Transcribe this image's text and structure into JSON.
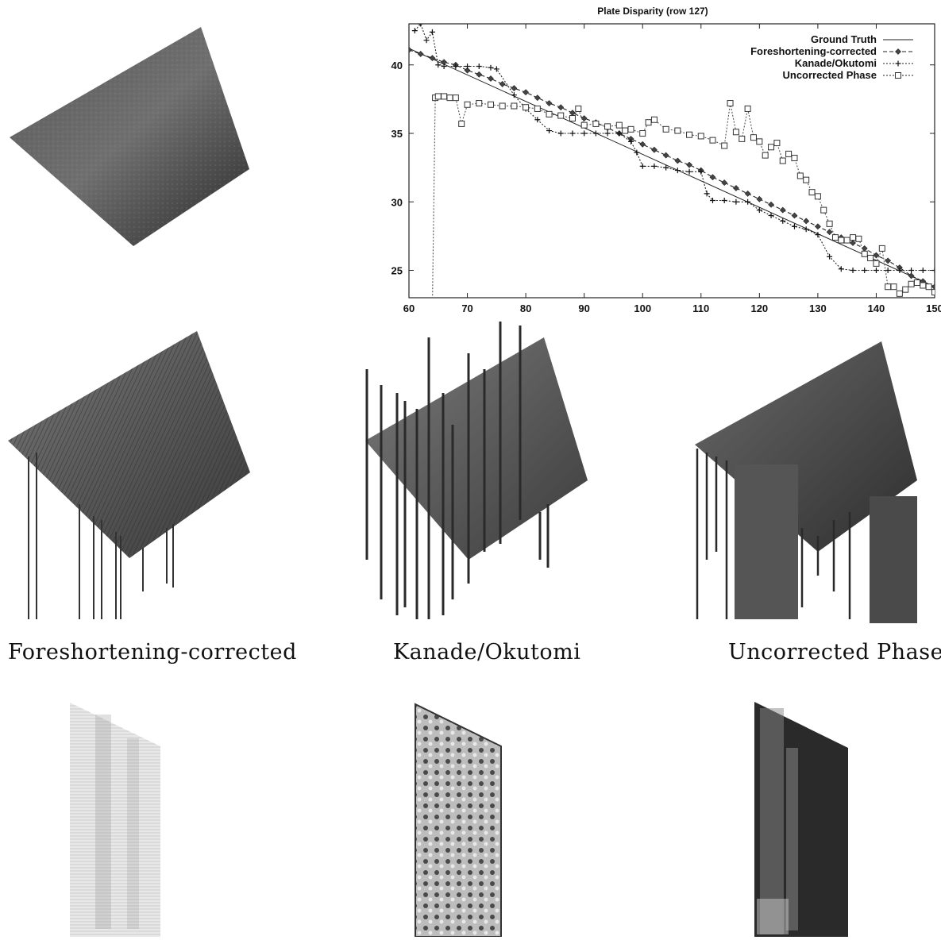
{
  "captions": {
    "left": "Foreshortening-corrected",
    "middle": "Kanade/Okutomi",
    "right": "Uncorrected Phase"
  },
  "chart_data": {
    "type": "line",
    "title": "Plate Disparity (row 127)",
    "xlabel": "",
    "ylabel": "",
    "xlim": [
      60,
      150
    ],
    "ylim": [
      23,
      43
    ],
    "xticks": [
      60,
      70,
      80,
      90,
      100,
      110,
      120,
      130,
      140,
      150
    ],
    "yticks": [
      25,
      30,
      35,
      40
    ],
    "grid": false,
    "legend": "top-right",
    "series": [
      {
        "name": "Ground Truth",
        "style": "solid",
        "marker": "none",
        "x": [
          60,
          150
        ],
        "y": [
          41.2,
          23.8
        ]
      },
      {
        "name": "Foreshortening-corrected",
        "style": "dashed",
        "marker": "diamond",
        "x": [
          60,
          62,
          64,
          66,
          68,
          70,
          72,
          74,
          76,
          78,
          80,
          82,
          84,
          86,
          88,
          90,
          92,
          94,
          96,
          98,
          100,
          102,
          104,
          106,
          108,
          110,
          112,
          114,
          116,
          118,
          120,
          122,
          124,
          126,
          128,
          130,
          132,
          134,
          136,
          138,
          140,
          142,
          144,
          146,
          148,
          150
        ],
        "y": [
          41.1,
          40.8,
          40.5,
          40.2,
          40.0,
          39.6,
          39.3,
          39.0,
          38.6,
          38.3,
          38.0,
          37.6,
          37.2,
          36.9,
          36.5,
          36.1,
          35.8,
          35.4,
          35.0,
          34.6,
          34.2,
          33.8,
          33.4,
          33.0,
          32.7,
          32.3,
          31.8,
          31.4,
          31.0,
          30.6,
          30.2,
          29.8,
          29.4,
          29.0,
          28.6,
          28.2,
          27.8,
          27.4,
          27.0,
          26.6,
          26.1,
          25.7,
          25.2,
          24.6,
          24.2,
          23.8
        ]
      },
      {
        "name": "Kanade/Okutomi",
        "style": "dotted",
        "marker": "plus",
        "x": [
          61,
          62,
          63,
          64,
          65,
          66,
          68,
          70,
          72,
          74,
          75,
          78,
          80,
          82,
          84,
          86,
          88,
          90,
          92,
          94,
          96,
          98,
          99,
          100,
          102,
          104,
          106,
          108,
          110,
          111,
          112,
          114,
          116,
          118,
          120,
          122,
          124,
          126,
          128,
          130,
          132,
          134,
          136,
          138,
          140,
          142,
          144,
          146,
          148,
          150
        ],
        "y": [
          42.5,
          43.0,
          41.8,
          42.4,
          40.0,
          39.9,
          39.9,
          39.9,
          39.9,
          39.8,
          39.7,
          37.8,
          36.8,
          36.0,
          35.2,
          35.0,
          35.0,
          35.0,
          35.0,
          35.0,
          35.0,
          34.4,
          33.6,
          32.6,
          32.6,
          32.5,
          32.3,
          32.2,
          32.2,
          30.6,
          30.1,
          30.1,
          30.0,
          30.0,
          29.4,
          29.0,
          28.6,
          28.2,
          28.0,
          27.6,
          26.0,
          25.1,
          25.0,
          25.0,
          25.0,
          25.0,
          25.0,
          25.0,
          25.0,
          25.0
        ]
      },
      {
        "name": "Uncorrected Phase",
        "style": "dotted",
        "marker": "square",
        "x": [
          64,
          64.5,
          65,
          66,
          67,
          68,
          69,
          70,
          72,
          74,
          76,
          78,
          80,
          82,
          84,
          86,
          88,
          89,
          90,
          92,
          94,
          96,
          97,
          98,
          100,
          101,
          102,
          104,
          106,
          108,
          110,
          112,
          114,
          115,
          116,
          117,
          118,
          119,
          120,
          121,
          122,
          123,
          124,
          125,
          126,
          127,
          128,
          129,
          130,
          131,
          132,
          133,
          134,
          135,
          136,
          137,
          138,
          139,
          140,
          141,
          142,
          143,
          144,
          145,
          146,
          147,
          148,
          149,
          150
        ],
        "y": [
          22.0,
          37.6,
          37.7,
          37.7,
          37.6,
          37.6,
          35.7,
          37.1,
          37.2,
          37.1,
          37.0,
          37.0,
          36.9,
          36.8,
          36.4,
          36.3,
          36.1,
          36.8,
          35.6,
          35.7,
          35.5,
          35.6,
          35.2,
          35.3,
          35.0,
          35.8,
          36.0,
          35.3,
          35.2,
          34.9,
          34.8,
          34.5,
          34.1,
          37.2,
          35.1,
          34.6,
          36.8,
          34.7,
          34.4,
          33.4,
          34.0,
          34.3,
          33.0,
          33.5,
          33.2,
          31.9,
          31.6,
          30.7,
          30.4,
          29.4,
          28.4,
          27.4,
          27.2,
          27.2,
          27.4,
          27.3,
          26.2,
          25.9,
          25.5,
          26.6,
          23.8,
          23.8,
          23.3,
          23.6,
          24.0,
          24.1,
          23.9,
          23.8,
          23.4
        ]
      }
    ]
  }
}
